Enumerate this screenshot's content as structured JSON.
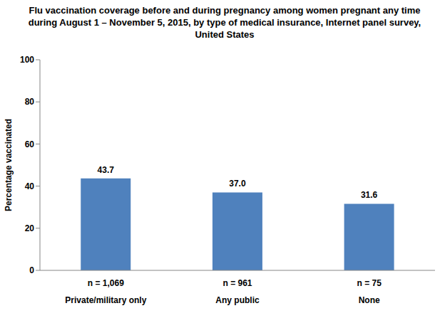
{
  "chart_data": {
    "type": "bar",
    "title": "Flu vaccination coverage before and during pregnancy among women pregnant any time during August 1 – November 5, 2015, by type of medical insurance, Internet panel survey, United States",
    "y_label": "Percentage vaccinated",
    "categories": [
      "Private/military only",
      "Any public",
      "None"
    ],
    "n_labels": [
      "n = 1,069",
      "n = 961",
      "n = 75"
    ],
    "values": [
      43.7,
      37.0,
      31.6
    ],
    "value_labels": [
      "43.7",
      "37.0",
      "31.6"
    ],
    "color": "#4f81bd",
    "ylim": [
      0,
      100
    ],
    "yticks": [
      0,
      20,
      40,
      60,
      80,
      100
    ],
    "grid": false,
    "data_labels": true
  }
}
